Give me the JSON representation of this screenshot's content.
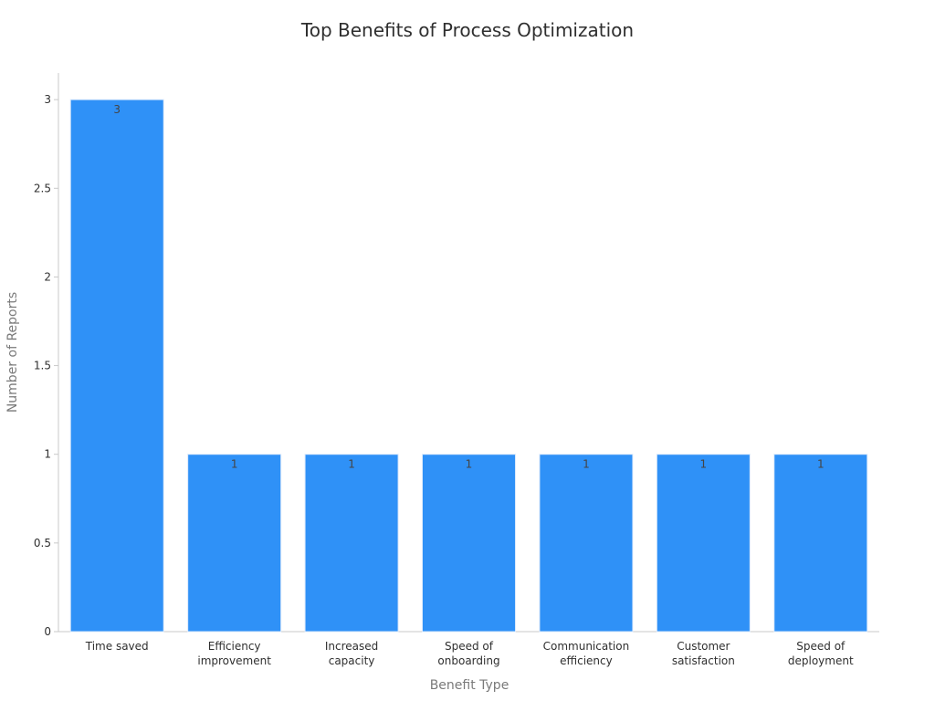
{
  "chart_data": {
    "type": "bar",
    "title": "Top Benefits of Process Optimization",
    "xlabel": "Benefit Type",
    "ylabel": "Number of Reports",
    "categories": [
      [
        "Time saved"
      ],
      [
        "Efficiency",
        "improvement"
      ],
      [
        "Increased",
        "capacity"
      ],
      [
        "Speed of",
        "onboarding"
      ],
      [
        "Communication",
        "efficiency"
      ],
      [
        "Customer",
        "satisfaction"
      ],
      [
        "Speed of",
        "deployment"
      ]
    ],
    "values": [
      3,
      1,
      1,
      1,
      1,
      1,
      1
    ],
    "data_labels": [
      "3",
      "1",
      "1",
      "1",
      "1",
      "1",
      "1"
    ],
    "ylim": [
      0,
      3.15
    ],
    "yticks": [
      0,
      0.5,
      1,
      1.5,
      2,
      2.5,
      3
    ],
    "ytick_labels": [
      "0",
      "0.5",
      "1",
      "1.5",
      "2",
      "2.5",
      "3"
    ],
    "grid": false,
    "legend": "none",
    "colors": {
      "bar": "#2f91f7",
      "bar_edge": "#dbe9fb",
      "axis": "#c9c9c9",
      "text": "#2f2f2f",
      "muted": "#7a7a7a",
      "label": "#444444"
    }
  }
}
